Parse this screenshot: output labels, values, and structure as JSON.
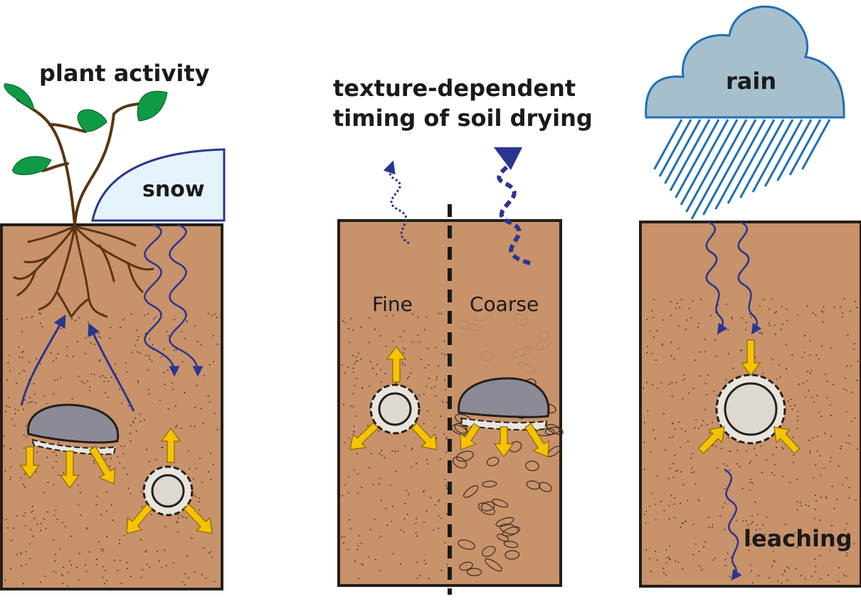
{
  "panels": {
    "left": {
      "title": "plant activity",
      "snow": "snow"
    },
    "middle": {
      "title_line1": "texture-dependent",
      "title_line2": "timing of soil drying",
      "fine": "Fine",
      "coarse": "Coarse"
    },
    "right": {
      "rain": "rain",
      "leaching": "leaching"
    }
  },
  "colors": {
    "soil": "#c8926b",
    "soil_border": "#231f1a",
    "water_arrow": "#2b3590",
    "yellow_arrow": "#f7c300",
    "cloud_fill": "#a6bfcc",
    "cloud_stroke": "#1f6fb5",
    "snow_fill": "#e4f3fc",
    "snow_stroke": "#2b3590",
    "rock": "#8d8a98",
    "leaf": "#0f9a45",
    "stem": "#5a3510"
  }
}
